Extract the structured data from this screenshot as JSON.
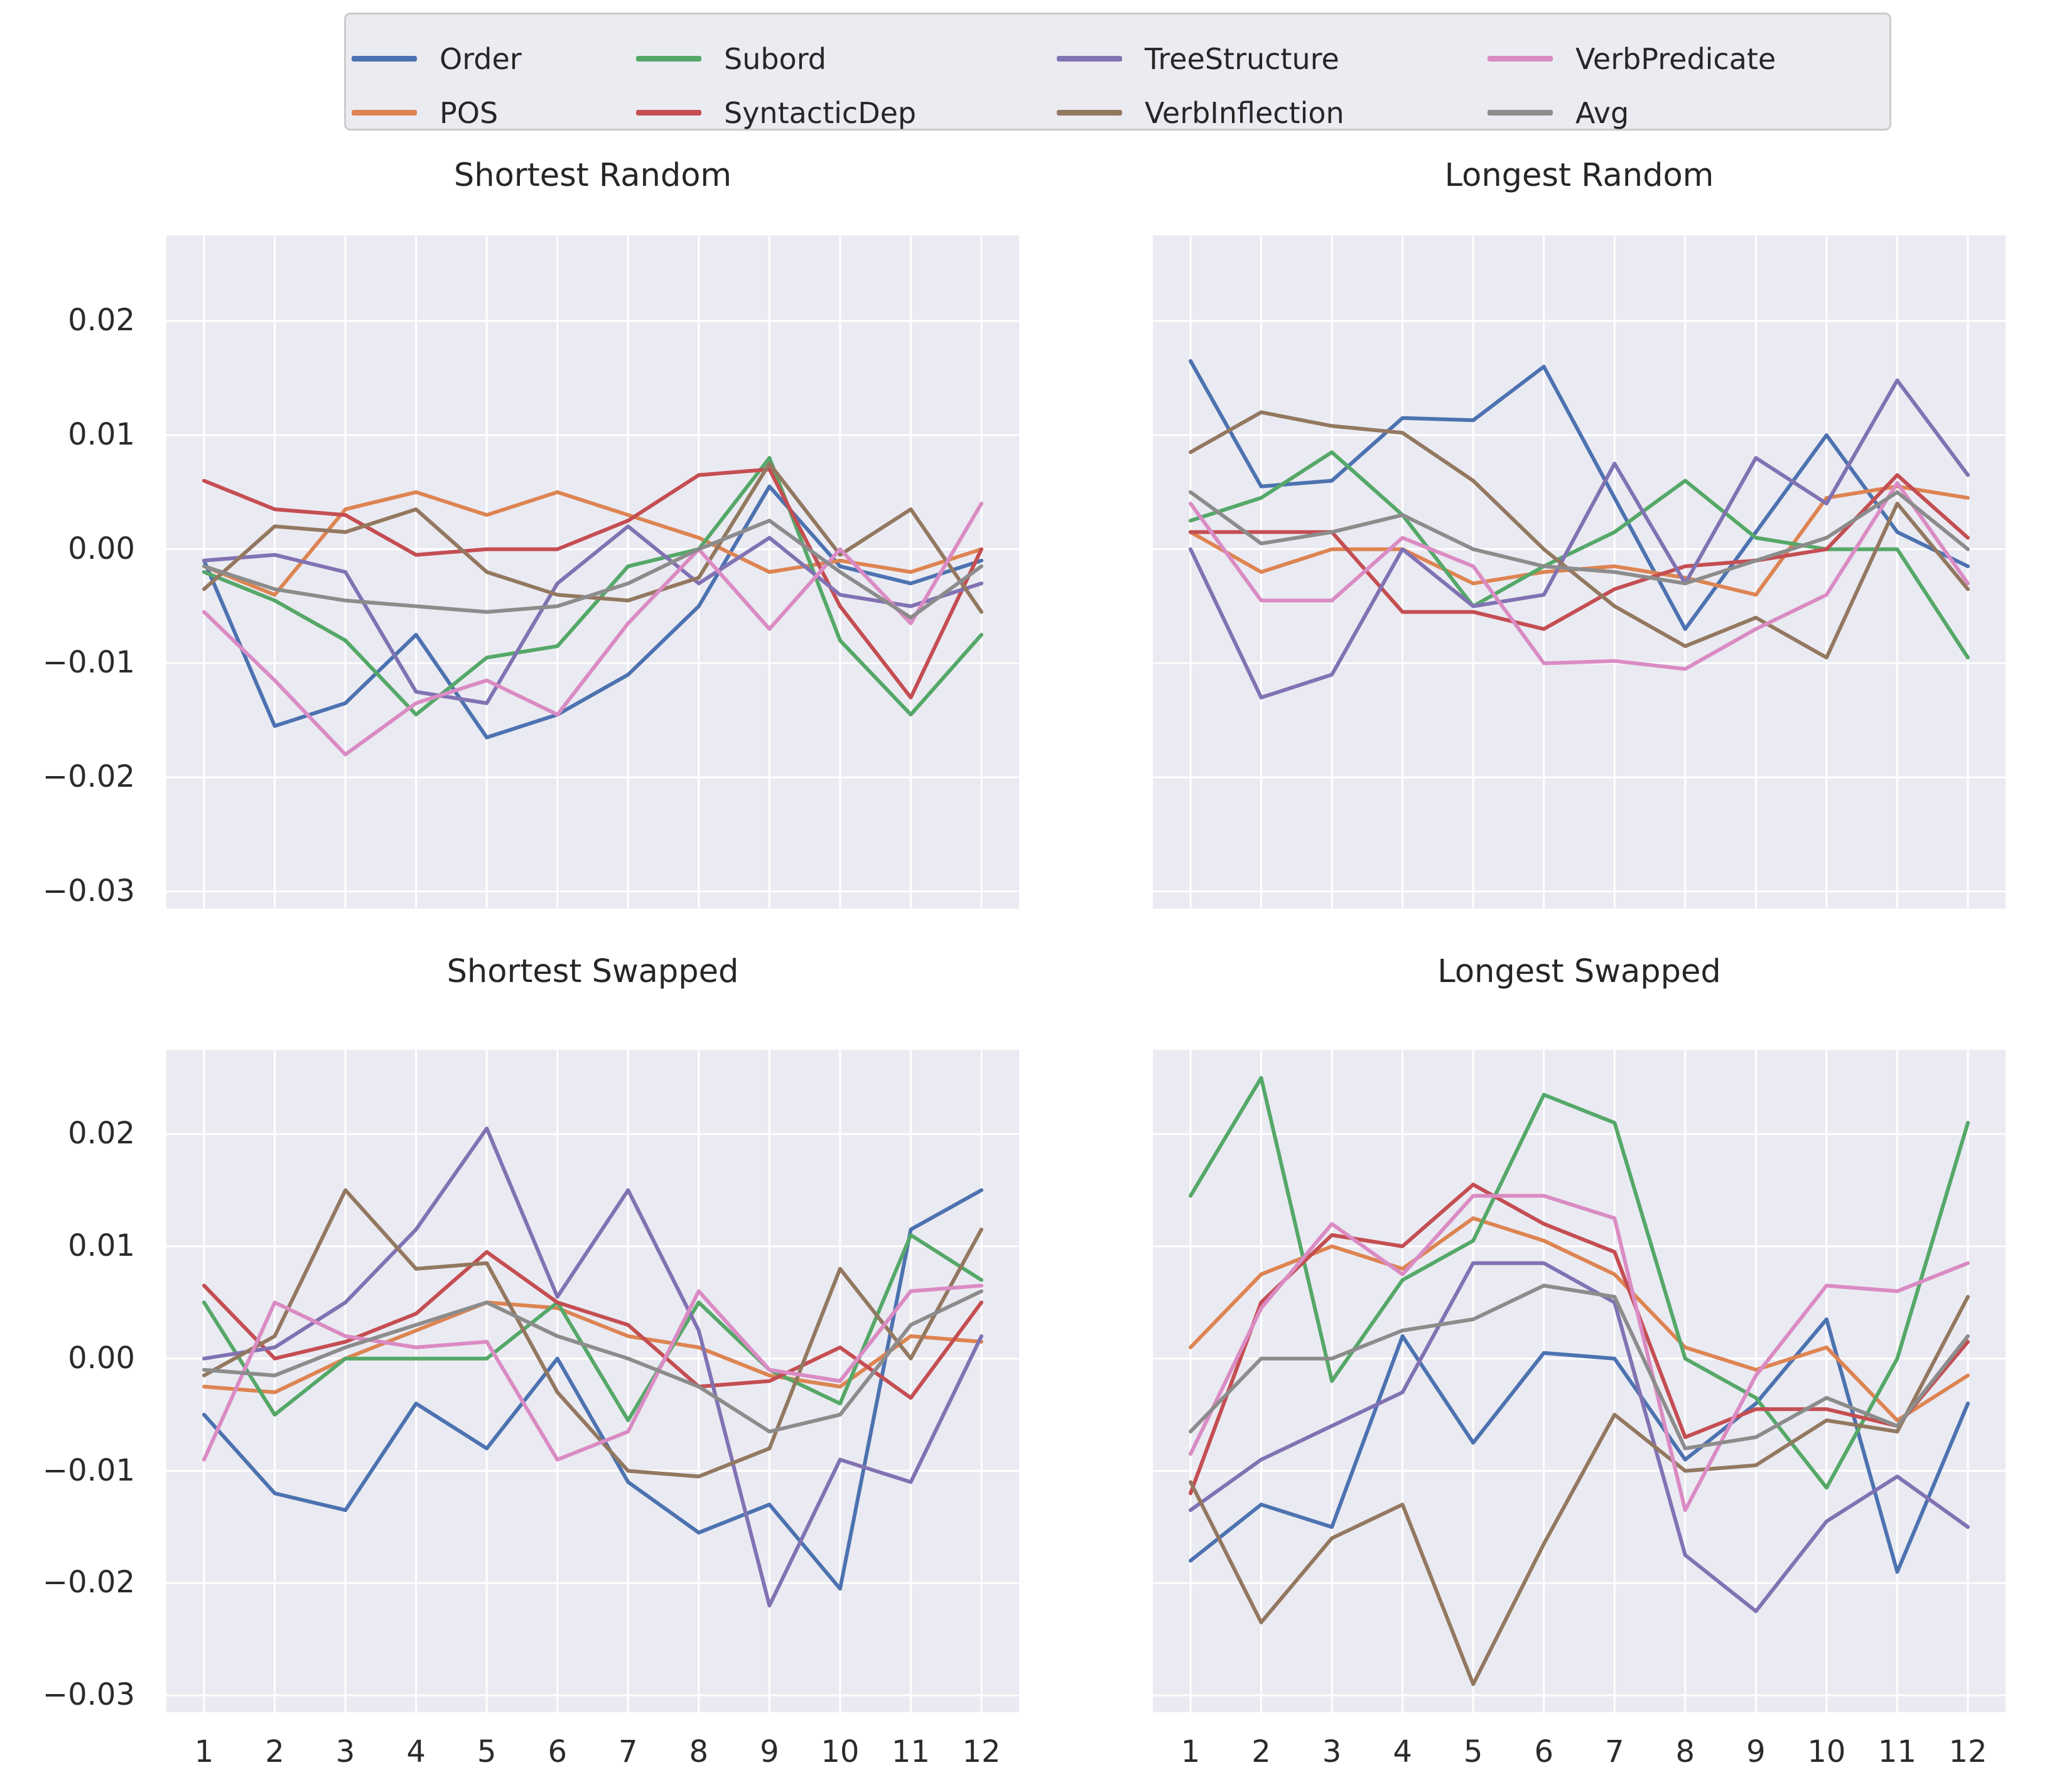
{
  "figure": {
    "background": "#ffffff",
    "plot_background": "#eaeaf2",
    "grid_color": "#ffffff",
    "text_color": "#262626"
  },
  "legend": {
    "items": [
      {
        "label": "Order",
        "color": "#4c72b0"
      },
      {
        "label": "POS",
        "color": "#dd8452"
      },
      {
        "label": "Subord",
        "color": "#55a868"
      },
      {
        "label": "SyntacticDep",
        "color": "#c44e52"
      },
      {
        "label": "TreeStructure",
        "color": "#8172b3"
      },
      {
        "label": "VerbInflection",
        "color": "#937860"
      },
      {
        "label": "VerbPredicate",
        "color": "#da8bc3"
      },
      {
        "label": "Avg",
        "color": "#8c8c8c"
      }
    ]
  },
  "axes": {
    "x_values": [
      1,
      2,
      3,
      4,
      5,
      6,
      7,
      8,
      9,
      10,
      11,
      12
    ],
    "x_tick_labels": [
      "1",
      "2",
      "3",
      "4",
      "5",
      "6",
      "7",
      "8",
      "9",
      "10",
      "11",
      "12"
    ],
    "y_tick_values": [
      0.02,
      0.01,
      0.0,
      -0.01,
      -0.02,
      -0.03
    ],
    "y_tick_labels": [
      "0.02",
      "0.01",
      "0.00",
      "−0.01",
      "−0.02",
      "−0.03"
    ],
    "ylim": [
      -0.0315,
      0.0275
    ],
    "grid": true,
    "legend_position": "top-center"
  },
  "chart_data": [
    {
      "type": "line",
      "title": "Shortest Random",
      "x": [
        1,
        2,
        3,
        4,
        5,
        6,
        7,
        8,
        9,
        10,
        11,
        12
      ],
      "ylim": [
        -0.0315,
        0.0275
      ],
      "series": [
        {
          "name": "Order",
          "values": [
            -0.001,
            -0.0155,
            -0.0135,
            -0.0075,
            -0.0165,
            -0.0145,
            -0.011,
            -0.005,
            0.0055,
            -0.0015,
            -0.003,
            -0.001
          ]
        },
        {
          "name": "POS",
          "values": [
            -0.0015,
            -0.004,
            0.0035,
            0.005,
            0.003,
            0.005,
            0.003,
            0.001,
            -0.002,
            -0.001,
            -0.002,
            0.0
          ]
        },
        {
          "name": "Subord",
          "values": [
            -0.002,
            -0.0045,
            -0.008,
            -0.0145,
            -0.0095,
            -0.0085,
            -0.0015,
            0.0,
            0.008,
            -0.008,
            -0.0145,
            -0.0075
          ]
        },
        {
          "name": "SyntacticDep",
          "values": [
            0.006,
            0.0035,
            0.003,
            -0.0005,
            0.0,
            0.0,
            0.0025,
            0.0065,
            0.007,
            -0.005,
            -0.013,
            0.0
          ]
        },
        {
          "name": "TreeStructure",
          "values": [
            -0.001,
            -0.0005,
            -0.002,
            -0.0125,
            -0.0135,
            -0.003,
            0.002,
            -0.003,
            0.001,
            -0.004,
            -0.005,
            -0.003
          ]
        },
        {
          "name": "VerbInflection",
          "values": [
            -0.0035,
            0.002,
            0.0015,
            0.0035,
            -0.002,
            -0.004,
            -0.0045,
            -0.0025,
            0.0075,
            -0.0005,
            0.0035,
            -0.0055
          ]
        },
        {
          "name": "VerbPredicate",
          "values": [
            -0.0055,
            -0.0115,
            -0.018,
            -0.0135,
            -0.0115,
            -0.0145,
            -0.0065,
            0.0,
            -0.007,
            0.0,
            -0.0065,
            0.004
          ]
        },
        {
          "name": "Avg",
          "values": [
            -0.0015,
            -0.0035,
            -0.0045,
            -0.005,
            -0.0055,
            -0.005,
            -0.003,
            0.0,
            0.0025,
            -0.002,
            -0.006,
            -0.0015
          ]
        }
      ]
    },
    {
      "type": "line",
      "title": "Longest Random",
      "x": [
        1,
        2,
        3,
        4,
        5,
        6,
        7,
        8,
        9,
        10,
        11,
        12
      ],
      "ylim": [
        -0.0315,
        0.0275
      ],
      "series": [
        {
          "name": "Order",
          "values": [
            0.0165,
            0.0055,
            0.006,
            0.0115,
            0.0113,
            0.016,
            0.0045,
            -0.007,
            0.0015,
            0.01,
            0.0015,
            -0.0015
          ]
        },
        {
          "name": "POS",
          "values": [
            0.0015,
            -0.002,
            0.0,
            0.0,
            -0.003,
            -0.002,
            -0.0015,
            -0.0025,
            -0.004,
            0.0045,
            0.0055,
            0.0045
          ]
        },
        {
          "name": "Subord",
          "values": [
            0.0025,
            0.0045,
            0.0085,
            0.003,
            -0.005,
            -0.0015,
            0.0015,
            0.006,
            0.001,
            0.0,
            0.0,
            -0.0095
          ]
        },
        {
          "name": "SyntacticDep",
          "values": [
            0.0015,
            0.0015,
            0.0015,
            -0.0055,
            -0.0055,
            -0.007,
            -0.0035,
            -0.0015,
            -0.001,
            0.0,
            0.0065,
            0.001
          ]
        },
        {
          "name": "TreeStructure",
          "values": [
            0.0,
            -0.013,
            -0.011,
            0.0,
            -0.005,
            -0.004,
            0.0075,
            -0.003,
            0.008,
            0.004,
            0.0148,
            0.0065
          ]
        },
        {
          "name": "VerbInflection",
          "values": [
            0.0085,
            0.012,
            0.0108,
            0.0102,
            0.006,
            0.0,
            -0.005,
            -0.0085,
            -0.006,
            -0.0095,
            0.004,
            -0.0035
          ]
        },
        {
          "name": "VerbPredicate",
          "values": [
            0.004,
            -0.0045,
            -0.0045,
            0.001,
            -0.0015,
            -0.01,
            -0.0098,
            -0.0105,
            -0.007,
            -0.004,
            0.0058,
            -0.003
          ]
        },
        {
          "name": "Avg",
          "values": [
            0.005,
            0.0005,
            0.0015,
            0.003,
            0.0,
            -0.0015,
            -0.002,
            -0.003,
            -0.001,
            0.001,
            0.005,
            0.0
          ]
        }
      ]
    },
    {
      "type": "line",
      "title": "Shortest Swapped",
      "x": [
        1,
        2,
        3,
        4,
        5,
        6,
        7,
        8,
        9,
        10,
        11,
        12
      ],
      "ylim": [
        -0.0315,
        0.0275
      ],
      "series": [
        {
          "name": "Order",
          "values": [
            -0.005,
            -0.012,
            -0.0135,
            -0.004,
            -0.008,
            0.0,
            -0.011,
            -0.0155,
            -0.013,
            -0.0205,
            0.0115,
            0.015
          ]
        },
        {
          "name": "POS",
          "values": [
            -0.0025,
            -0.003,
            0.0,
            0.0025,
            0.005,
            0.0045,
            0.002,
            0.001,
            -0.0015,
            -0.0025,
            0.002,
            0.0015
          ]
        },
        {
          "name": "Subord",
          "values": [
            0.005,
            -0.005,
            0.0,
            0.0,
            0.0,
            0.005,
            -0.0055,
            0.005,
            -0.001,
            -0.004,
            0.011,
            0.007
          ]
        },
        {
          "name": "SyntacticDep",
          "values": [
            0.0065,
            0.0,
            0.0015,
            0.004,
            0.0095,
            0.005,
            0.003,
            -0.0025,
            -0.002,
            0.001,
            -0.0035,
            0.005
          ]
        },
        {
          "name": "TreeStructure",
          "values": [
            0.0,
            0.001,
            0.005,
            0.0115,
            0.0205,
            0.0055,
            0.015,
            0.0025,
            -0.022,
            -0.009,
            -0.011,
            0.002
          ]
        },
        {
          "name": "VerbInflection",
          "values": [
            -0.0015,
            0.002,
            0.015,
            0.008,
            0.0085,
            -0.003,
            -0.01,
            -0.0105,
            -0.008,
            0.008,
            0.0,
            0.0115
          ]
        },
        {
          "name": "VerbPredicate",
          "values": [
            -0.009,
            0.005,
            0.002,
            0.001,
            0.0015,
            -0.009,
            -0.0065,
            0.006,
            -0.001,
            -0.002,
            0.006,
            0.0065
          ]
        },
        {
          "name": "Avg",
          "values": [
            -0.001,
            -0.0015,
            0.001,
            0.003,
            0.005,
            0.002,
            0.0,
            -0.0025,
            -0.0065,
            -0.005,
            0.003,
            0.006
          ]
        }
      ]
    },
    {
      "type": "line",
      "title": "Longest Swapped",
      "x": [
        1,
        2,
        3,
        4,
        5,
        6,
        7,
        8,
        9,
        10,
        11,
        12
      ],
      "ylim": [
        -0.0315,
        0.0275
      ],
      "series": [
        {
          "name": "Order",
          "values": [
            -0.018,
            -0.013,
            -0.015,
            0.002,
            -0.0075,
            0.0005,
            0.0,
            -0.009,
            -0.004,
            0.0035,
            -0.019,
            -0.004
          ]
        },
        {
          "name": "POS",
          "values": [
            0.001,
            0.0075,
            0.01,
            0.008,
            0.0125,
            0.0105,
            0.0075,
            0.001,
            -0.001,
            0.001,
            -0.0055,
            -0.0015
          ]
        },
        {
          "name": "Subord",
          "values": [
            0.0145,
            0.025,
            -0.002,
            0.007,
            0.0105,
            0.0235,
            0.021,
            0.0,
            -0.0035,
            -0.0115,
            0.0,
            0.021
          ]
        },
        {
          "name": "SyntacticDep",
          "values": [
            -0.012,
            0.005,
            0.011,
            0.01,
            0.0155,
            0.012,
            0.0095,
            -0.007,
            -0.0045,
            -0.0045,
            -0.006,
            0.0015
          ]
        },
        {
          "name": "TreeStructure",
          "values": [
            -0.0135,
            -0.009,
            -0.006,
            -0.003,
            0.0085,
            0.0085,
            0.005,
            -0.0175,
            -0.0225,
            -0.0145,
            -0.0105,
            -0.015
          ]
        },
        {
          "name": "VerbInflection",
          "values": [
            -0.011,
            -0.0235,
            -0.016,
            -0.013,
            -0.029,
            -0.0165,
            -0.005,
            -0.01,
            -0.0095,
            -0.0055,
            -0.0065,
            0.0055
          ]
        },
        {
          "name": "VerbPredicate",
          "values": [
            -0.0085,
            0.0045,
            0.012,
            0.0075,
            0.0145,
            0.0145,
            0.0125,
            -0.0135,
            -0.0015,
            0.0065,
            0.006,
            0.0085
          ]
        },
        {
          "name": "Avg",
          "values": [
            -0.0065,
            0.0,
            0.0,
            0.0025,
            0.0035,
            0.0065,
            0.0055,
            -0.008,
            -0.007,
            -0.0035,
            -0.006,
            0.002
          ]
        }
      ]
    }
  ]
}
